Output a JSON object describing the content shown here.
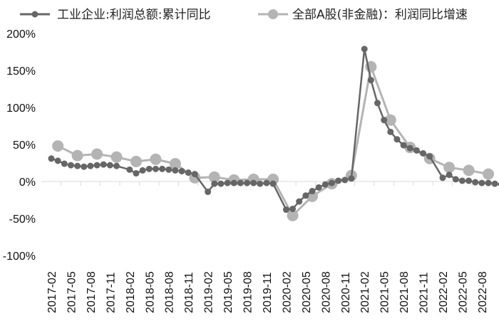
{
  "chart_data": {
    "type": "line",
    "title": "",
    "xlabel": "",
    "ylabel": "",
    "ylim": [
      -100,
      200
    ],
    "yticks": [
      "200%",
      "150%",
      "100%",
      "50%",
      "0%",
      "-50%",
      "-100%"
    ],
    "ytick_values": [
      200,
      150,
      100,
      50,
      0,
      -50,
      -100
    ],
    "grid": false,
    "legend_position": "top",
    "x_tick_labels": [
      "2017-02",
      "2017-05",
      "2017-08",
      "2017-11",
      "2018-02",
      "2018-05",
      "2018-08",
      "2018-11",
      "2019-02",
      "2019-05",
      "2019-08",
      "2019-11",
      "2020-02",
      "2020-05",
      "2020-08",
      "2020-11",
      "2021-02",
      "2021-05",
      "2021-08",
      "2021-11",
      "2022-02",
      "2022-05",
      "2022-08"
    ],
    "series": [
      {
        "name": "工业企业:利润总额:累计同比",
        "color": "#666666",
        "marker_size": "small",
        "x": [
          "2017-02",
          "2017-03",
          "2017-04",
          "2017-05",
          "2017-06",
          "2017-07",
          "2017-08",
          "2017-09",
          "2017-10",
          "2017-11",
          "2017-12",
          "2018-02",
          "2018-03",
          "2018-04",
          "2018-05",
          "2018-06",
          "2018-07",
          "2018-08",
          "2018-09",
          "2018-10",
          "2018-11",
          "2018-12",
          "2019-02",
          "2019-03",
          "2019-04",
          "2019-05",
          "2019-06",
          "2019-07",
          "2019-08",
          "2019-09",
          "2019-10",
          "2019-11",
          "2019-12",
          "2020-02",
          "2020-03",
          "2020-04",
          "2020-05",
          "2020-06",
          "2020-07",
          "2020-08",
          "2020-09",
          "2020-10",
          "2020-11",
          "2020-12",
          "2021-02",
          "2021-03",
          "2021-04",
          "2021-05",
          "2021-06",
          "2021-07",
          "2021-08",
          "2021-09",
          "2021-10",
          "2021-11",
          "2021-12",
          "2022-02",
          "2022-03",
          "2022-04",
          "2022-05",
          "2022-06",
          "2022-07",
          "2022-08",
          "2022-09",
          "2022-10",
          "2022-11"
        ],
        "values": [
          31,
          28,
          24,
          22,
          21,
          20,
          21,
          22,
          23,
          22,
          21,
          16,
          11,
          15,
          17,
          17,
          17,
          16,
          15,
          14,
          12,
          10,
          -14,
          -3,
          -3,
          -2,
          -2,
          -2,
          -2,
          -2,
          -3,
          -2,
          -3,
          -38,
          -37,
          -27,
          -19,
          -13,
          -8,
          -4,
          -2,
          1,
          2,
          4,
          179,
          137,
          106,
          83,
          67,
          57,
          49,
          45,
          42,
          38,
          34,
          5,
          9,
          3,
          1,
          1,
          -1,
          -2,
          -2,
          -3,
          -4
        ]
      },
      {
        "name": "全部A股(非金融)：利润同比增速",
        "color": "#b4b4b4",
        "marker_size": "large",
        "x": [
          "2017-03",
          "2017-06",
          "2017-09",
          "2017-12",
          "2018-03",
          "2018-06",
          "2018-09",
          "2018-12",
          "2019-03",
          "2019-06",
          "2019-09",
          "2019-12",
          "2020-03",
          "2020-06",
          "2020-09",
          "2020-12",
          "2021-03",
          "2021-06",
          "2021-09",
          "2021-12",
          "2022-03",
          "2022-06",
          "2022-09"
        ],
        "values": [
          48,
          35,
          37,
          33,
          27,
          30,
          24,
          5,
          6,
          2,
          3,
          3,
          -46,
          -20,
          -3,
          8,
          155,
          83,
          46,
          31,
          19,
          15,
          10
        ]
      }
    ]
  },
  "legend": {
    "items": [
      {
        "label": "工业企业:利润总额:累计同比",
        "color": "#666666"
      },
      {
        "label": "全部A股(非金融)：利润同比增速",
        "color": "#b4b4b4"
      }
    ]
  }
}
